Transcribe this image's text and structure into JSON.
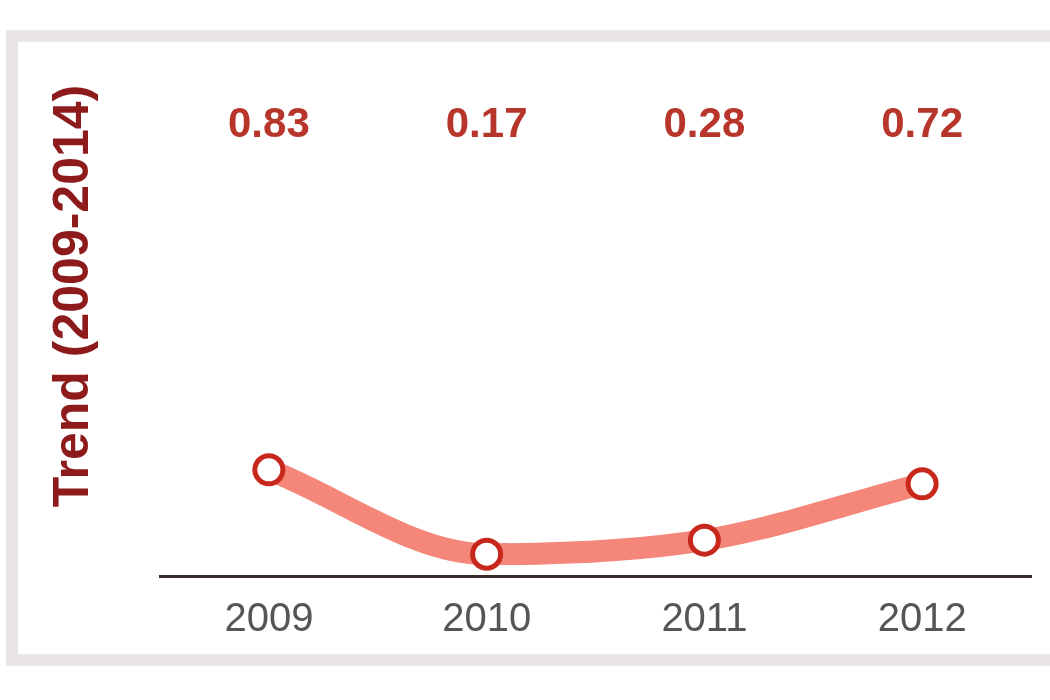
{
  "chart_data": {
    "type": "line",
    "ylabel": "Trend (2009-2014)",
    "categories": [
      "2009",
      "2010",
      "2011",
      "2012"
    ],
    "values": [
      0.83,
      0.17,
      0.28,
      0.72
    ],
    "color": "#f4877a",
    "data_labels": true,
    "tick_labels": "x",
    "marker": "circle",
    "line_style": "solid"
  }
}
